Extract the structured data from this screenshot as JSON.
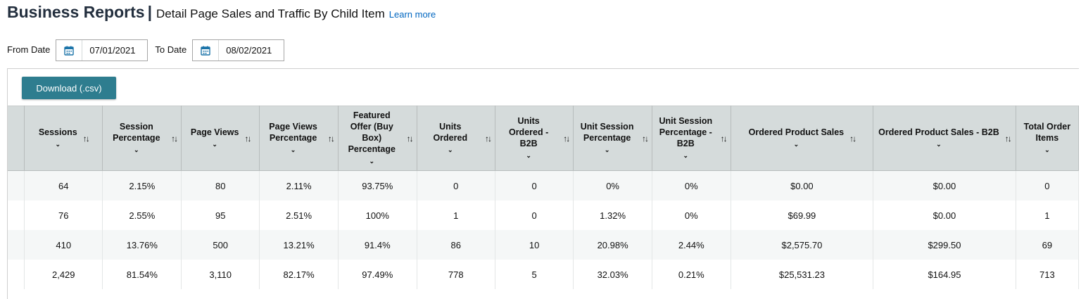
{
  "header": {
    "title": "Business Reports",
    "separator": "|",
    "subtitle": "Detail Page Sales and Traffic By Child Item",
    "learn_more": "Learn more"
  },
  "filters": {
    "from_label": "From Date",
    "from_value": "07/01/2021",
    "to_label": "To Date",
    "to_value": "08/02/2021"
  },
  "toolbar": {
    "download_label": "Download (.csv)"
  },
  "table": {
    "columns": [
      {
        "label": "Sessions"
      },
      {
        "label": "Session Percentage"
      },
      {
        "label": "Page Views"
      },
      {
        "label": "Page Views Percentage"
      },
      {
        "label": "Featured Offer (Buy Box) Percentage"
      },
      {
        "label": "Units Ordered"
      },
      {
        "label": "Units Ordered - B2B"
      },
      {
        "label": "Unit Session Percentage"
      },
      {
        "label": "Unit Session Percentage - B2B"
      },
      {
        "label": "Ordered Product Sales"
      },
      {
        "label": "Ordered Product Sales - B2B"
      },
      {
        "label": "Total Order Items"
      }
    ],
    "rows": [
      [
        "64",
        "2.15%",
        "80",
        "2.11%",
        "93.75%",
        "0",
        "0",
        "0%",
        "0%",
        "$0.00",
        "$0.00",
        "0"
      ],
      [
        "76",
        "2.55%",
        "95",
        "2.51%",
        "100%",
        "1",
        "0",
        "1.32%",
        "0%",
        "$69.99",
        "$0.00",
        "1"
      ],
      [
        "410",
        "13.76%",
        "500",
        "13.21%",
        "91.4%",
        "86",
        "10",
        "20.98%",
        "2.44%",
        "$2,575.70",
        "$299.50",
        "69"
      ],
      [
        "2,429",
        "81.54%",
        "3,110",
        "82.17%",
        "97.49%",
        "778",
        "5",
        "32.03%",
        "0.21%",
        "$25,531.23",
        "$164.95",
        "713"
      ]
    ]
  },
  "icons": {
    "calendar": "calendar-icon",
    "sort": "sort-icon",
    "chevron": "chevron-down-icon"
  },
  "colors": {
    "accent": "#2e7d8f",
    "header_bg": "#d5dbdb",
    "link": "#0066c0"
  }
}
